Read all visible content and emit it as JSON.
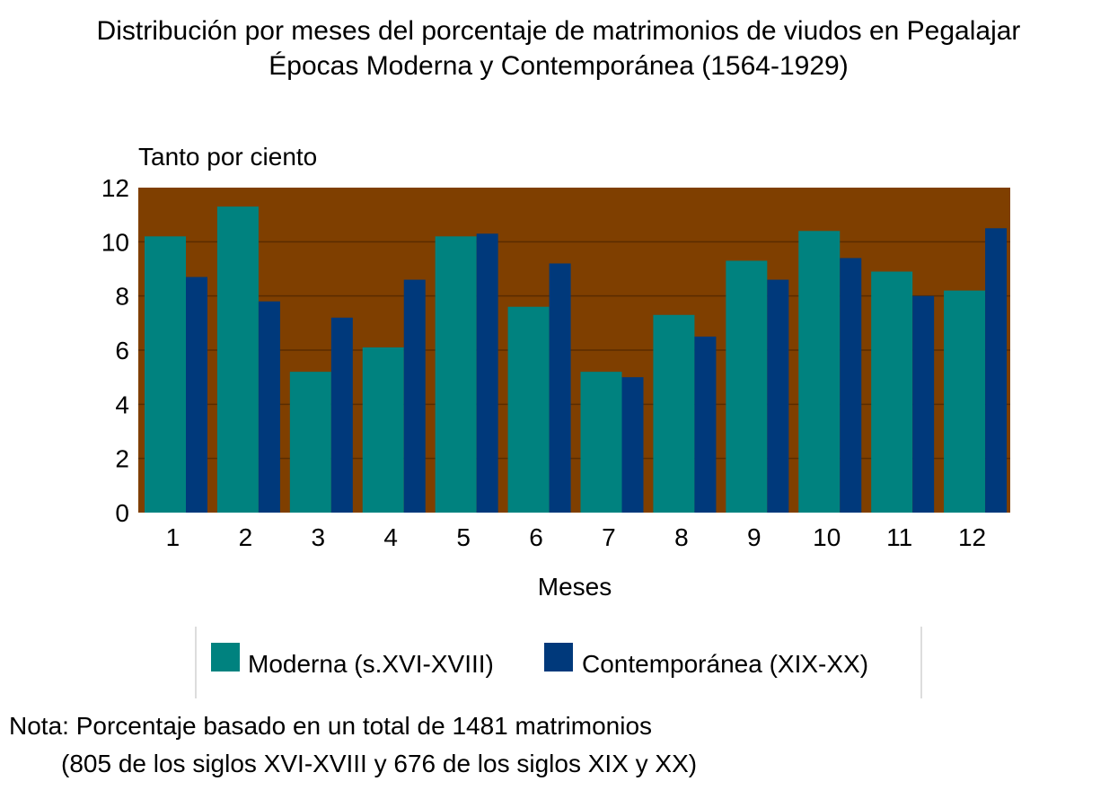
{
  "chart_data": {
    "type": "bar",
    "title": "Distribución por meses del porcentaje de matrimonios de viudos en Pegalajar",
    "subtitle": "Épocas Moderna y Contemporánea (1564-1929)",
    "ylabel": "Tanto por ciento",
    "xlabel": "Meses",
    "categories": [
      "1",
      "2",
      "3",
      "4",
      "5",
      "6",
      "7",
      "8",
      "9",
      "10",
      "11",
      "12"
    ],
    "ylim": [
      0,
      12
    ],
    "yticks": [
      0,
      2,
      4,
      6,
      8,
      10,
      12
    ],
    "grid": true,
    "legend_position": "bottom",
    "series": [
      {
        "name": "Moderna (s.XVI-XVIII)",
        "color": "#00827F",
        "values": [
          10.2,
          11.3,
          5.2,
          6.1,
          10.2,
          7.6,
          5.2,
          7.3,
          9.3,
          10.4,
          8.9,
          8.2
        ]
      },
      {
        "name": "Contemporánea (XIX-XX)",
        "color": "#00397B",
        "values": [
          8.7,
          7.8,
          7.2,
          8.6,
          10.3,
          9.2,
          5.0,
          6.5,
          8.6,
          9.4,
          8.0,
          10.5
        ]
      }
    ],
    "plot_background": "#7F3F00",
    "note_lines": [
      "Nota: Porcentaje basado en un total de 1481 matrimonios",
      "(805 de los siglos XVI-XVIII y 676 de los siglos XIX y XX)"
    ]
  }
}
